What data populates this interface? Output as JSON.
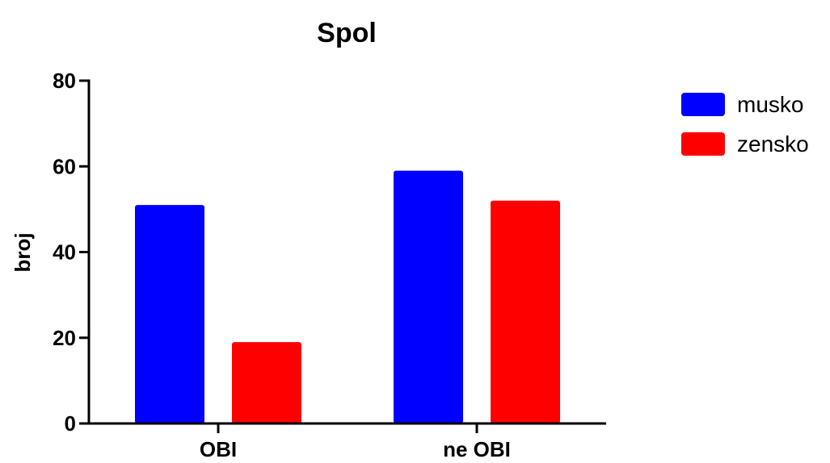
{
  "chart_data": {
    "type": "bar",
    "title": "Spol",
    "xlabel": "",
    "ylabel": "broj",
    "categories": [
      "OBI",
      "ne OBI"
    ],
    "series": [
      {
        "name": "musko",
        "color": "#0000ff",
        "values": [
          51,
          59
        ]
      },
      {
        "name": "zensko",
        "color": "#ff0000",
        "values": [
          19,
          52
        ]
      }
    ],
    "ylim": [
      0,
      80
    ],
    "yticks": [
      0,
      20,
      40,
      60,
      80
    ],
    "grid": false,
    "legend_position": "top-right"
  }
}
